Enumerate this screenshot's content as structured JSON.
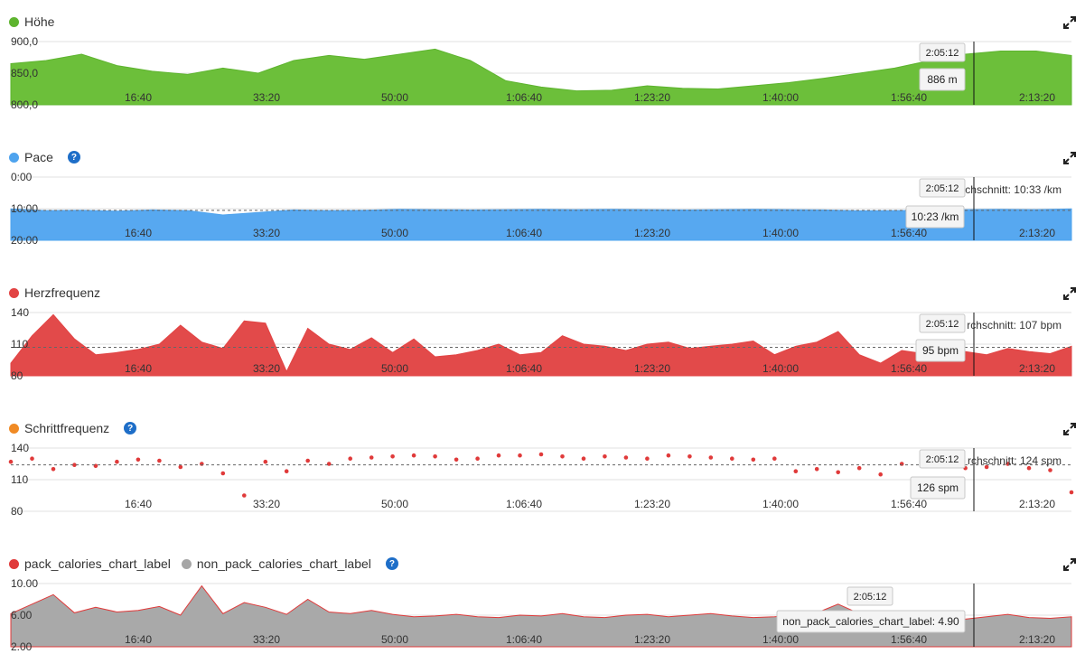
{
  "x_ticks": [
    "16:40",
    "33:20",
    "50:00",
    "1:06:40",
    "1:23:20",
    "1:40:00",
    "1:56:40",
    "2:13:20"
  ],
  "cursor_time": "2:05:12",
  "chart_data": [
    {
      "id": "hoehe",
      "type": "area",
      "title": "Höhe",
      "color": "#5eb42f",
      "fill": "#6cbf3a",
      "yticks": [
        "900,0",
        "850,0",
        "800,0"
      ],
      "ylim": [
        800,
        900
      ],
      "ylim_inverted": false,
      "x_minutes": [
        0,
        5,
        10,
        15,
        20,
        25,
        30,
        35,
        40,
        45,
        50,
        55,
        60,
        65,
        70,
        75,
        80,
        85,
        90,
        95,
        100,
        105,
        110,
        115,
        120,
        125,
        130,
        135,
        140,
        145,
        150
      ],
      "values": [
        865,
        870,
        880,
        862,
        853,
        848,
        858,
        850,
        870,
        878,
        872,
        880,
        888,
        870,
        838,
        828,
        822,
        823,
        830,
        826,
        825,
        830,
        835,
        842,
        850,
        858,
        870,
        880,
        885,
        885,
        878
      ],
      "tooltip": "886 m",
      "average_label": ""
    },
    {
      "id": "pace",
      "type": "area",
      "title": "Pace",
      "color": "#4ea3ee",
      "fill": "#57a8f0",
      "yticks": [
        "0:00",
        "10:00",
        "20:00"
      ],
      "ylim": [
        0,
        20
      ],
      "ylim_inverted": true,
      "x_minutes": [
        0,
        5,
        10,
        15,
        20,
        25,
        30,
        35,
        40,
        45,
        50,
        55,
        60,
        65,
        70,
        75,
        80,
        85,
        90,
        95,
        100,
        105,
        110,
        115,
        120,
        125,
        130,
        135,
        140,
        145,
        150
      ],
      "values": [
        10.1,
        10.6,
        10.5,
        10.8,
        10.4,
        10.6,
        12.0,
        11.2,
        10.4,
        10.6,
        10.5,
        10.2,
        10.3,
        10.4,
        10.3,
        10.2,
        10.3,
        10.2,
        10.3,
        10.4,
        10.3,
        10.2,
        10.3,
        10.4,
        10.7,
        10.6,
        10.5,
        10.3,
        10.2,
        10.3,
        10.1
      ],
      "tooltip": "10:23 /km",
      "average_label": "rchschnitt: 10:33 /km",
      "average_value": 10.55
    },
    {
      "id": "herz",
      "type": "area",
      "title": "Herzfrequenz",
      "color": "#e24444",
      "fill": "#e24a4a",
      "yticks": [
        "140",
        "110",
        "80"
      ],
      "ylim": [
        80,
        140
      ],
      "ylim_inverted": false,
      "x_minutes": [
        0,
        3,
        6,
        9,
        12,
        15,
        18,
        21,
        24,
        27,
        30,
        33,
        36,
        39,
        42,
        45,
        48,
        51,
        54,
        57,
        60,
        63,
        66,
        69,
        72,
        75,
        78,
        81,
        84,
        87,
        90,
        93,
        96,
        99,
        102,
        105,
        108,
        111,
        114,
        117,
        120,
        123,
        126,
        129,
        132,
        135,
        138,
        141,
        144,
        147,
        150
      ],
      "values": [
        92,
        118,
        138,
        115,
        100,
        102,
        105,
        110,
        128,
        112,
        106,
        132,
        130,
        84,
        125,
        110,
        105,
        116,
        102,
        115,
        98,
        100,
        104,
        110,
        100,
        102,
        118,
        110,
        108,
        104,
        110,
        112,
        106,
        108,
        110,
        113,
        100,
        108,
        112,
        122,
        100,
        92,
        104,
        101,
        106,
        103,
        100,
        106,
        103,
        101,
        108
      ],
      "tooltip": "95 bpm",
      "average_label": "rchschnitt: 107 bpm",
      "average_value": 107
    },
    {
      "id": "schritt",
      "type": "scatter",
      "title": "Schrittfrequenz",
      "color": "#e03a3a",
      "dot_color": "#f08a24",
      "yticks": [
        "140",
        "110",
        "80"
      ],
      "ylim": [
        80,
        140
      ],
      "ylim_inverted": false,
      "x_minutes": [
        0,
        3,
        6,
        9,
        12,
        15,
        18,
        21,
        24,
        27,
        30,
        33,
        36,
        39,
        42,
        45,
        48,
        51,
        54,
        57,
        60,
        63,
        66,
        69,
        72,
        75,
        78,
        81,
        84,
        87,
        90,
        93,
        96,
        99,
        102,
        105,
        108,
        111,
        114,
        117,
        120,
        123,
        126,
        129,
        132,
        135,
        138,
        141,
        144,
        147,
        150
      ],
      "values": [
        127,
        130,
        120,
        124,
        123,
        127,
        129,
        128,
        122,
        125,
        116,
        95,
        127,
        118,
        128,
        125,
        130,
        131,
        132,
        133,
        132,
        129,
        130,
        133,
        133,
        134,
        132,
        130,
        132,
        131,
        130,
        133,
        132,
        131,
        130,
        129,
        130,
        118,
        120,
        117,
        121,
        115,
        125,
        124,
        123,
        121,
        122,
        125,
        121,
        119,
        98
      ],
      "tooltip": "126 spm",
      "average_label": "rchschnitt: 124 spm",
      "average_value": 124
    },
    {
      "id": "kalorien",
      "type": "area",
      "title": "pack_calories_chart_label",
      "title2": "non_pack_calories_chart_label",
      "color": "#e03a3a",
      "color2": "#a6a6a6",
      "fill": "#a9a9a9",
      "yticks": [
        "10.00",
        "6.00",
        "2.00"
      ],
      "ylim": [
        2,
        10
      ],
      "ylim_inverted": false,
      "x_minutes": [
        0,
        3,
        6,
        9,
        12,
        15,
        18,
        21,
        24,
        27,
        30,
        33,
        36,
        39,
        42,
        45,
        48,
        51,
        54,
        57,
        60,
        63,
        66,
        69,
        72,
        75,
        78,
        81,
        84,
        87,
        90,
        93,
        96,
        99,
        102,
        105,
        108,
        111,
        114,
        117,
        120,
        123,
        126,
        129,
        132,
        135,
        138,
        141,
        144,
        147,
        150
      ],
      "values": [
        6.2,
        7.4,
        8.6,
        6.3,
        7.0,
        6.4,
        6.6,
        7.1,
        6.0,
        9.7,
        6.2,
        7.6,
        7.0,
        6.1,
        8.0,
        6.4,
        6.2,
        6.6,
        6.1,
        5.8,
        5.9,
        6.1,
        5.8,
        5.7,
        6.0,
        5.9,
        6.2,
        5.8,
        5.7,
        6.0,
        6.1,
        5.8,
        6.0,
        6.2,
        5.9,
        5.7,
        5.8,
        6.0,
        6.3,
        7.4,
        6.2,
        5.8,
        5.6,
        5.9,
        6.0,
        5.5,
        5.8,
        6.1,
        5.7,
        5.6,
        5.8
      ],
      "tooltip": "non_pack_calories_chart_label: 4.90",
      "average_label": ""
    }
  ]
}
